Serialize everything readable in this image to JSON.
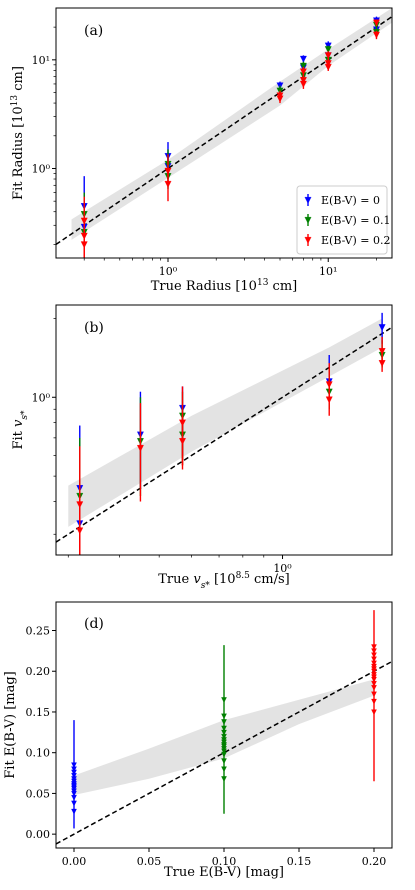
{
  "figure": {
    "background": "#ffffff"
  },
  "colors": {
    "E(B-V) = 0": "#0000ff",
    "E(B-V) = 0.1": "#008000",
    "E(B-V) = 0.2": "#ff0000",
    "identity_line": "#000000",
    "band": "#d9d9d9"
  },
  "chart_data": [
    {
      "panel": "(a)",
      "type": "scatter",
      "xscale": "log",
      "yscale": "log",
      "xlabel": "True Radius [10¹³ cm]",
      "ylabel": "Fit Radius [10¹³ cm]",
      "xlim": [
        0.2,
        25
      ],
      "ylim": [
        0.15,
        30
      ],
      "xticks": [
        {
          "value": 1,
          "label": "10⁰"
        },
        {
          "value": 10,
          "label": "10¹"
        }
      ],
      "yticks": [
        {
          "value": 1,
          "label": "10⁰"
        },
        {
          "value": 10,
          "label": "10¹"
        }
      ],
      "legend": {
        "position": "bottom-right",
        "entries": [
          "E(B-V) = 0",
          "E(B-V) = 0.1",
          "E(B-V) = 0.2"
        ]
      },
      "identity_line": true,
      "band": [
        {
          "x": 0.25,
          "low": 0.22,
          "high": 0.34
        },
        {
          "x": 1,
          "low": 0.82,
          "high": 1.2
        },
        {
          "x": 5,
          "low": 3.8,
          "high": 6.3
        },
        {
          "x": 10,
          "low": 8.8,
          "high": 12.5
        },
        {
          "x": 25,
          "low": 22,
          "high": 30
        }
      ],
      "series": [
        {
          "name": "E(B-V) = 0",
          "points": [
            {
              "x": 0.3,
              "y": 0.45,
              "lo": 0.3,
              "hi": 0.85
            },
            {
              "x": 0.3,
              "y": 0.29,
              "lo": 0.2,
              "hi": 0.45
            },
            {
              "x": 1,
              "y": 1.3,
              "lo": 0.9,
              "hi": 1.75
            },
            {
              "x": 1,
              "y": 1.05,
              "lo": 0.8,
              "hi": 1.4
            },
            {
              "x": 5,
              "y": 5.8,
              "lo": 4.9,
              "hi": 6.3
            },
            {
              "x": 7,
              "y": 10.2,
              "lo": 9.2,
              "hi": 11.0
            },
            {
              "x": 7,
              "y": 8.5,
              "lo": 7.8,
              "hi": 9.3
            },
            {
              "x": 10,
              "y": 13.5,
              "lo": 12.5,
              "hi": 14.8
            },
            {
              "x": 10,
              "y": 11.0,
              "lo": 10.0,
              "hi": 12.0
            },
            {
              "x": 20,
              "y": 23,
              "lo": 21,
              "hi": 25
            },
            {
              "x": 20,
              "y": 19,
              "lo": 17.5,
              "hi": 20.5
            }
          ]
        },
        {
          "name": "E(B-V) = 0.1",
          "points": [
            {
              "x": 0.3,
              "y": 0.38,
              "lo": 0.25,
              "hi": 0.6
            },
            {
              "x": 0.3,
              "y": 0.26,
              "lo": 0.18,
              "hi": 0.36
            },
            {
              "x": 1,
              "y": 1.1,
              "lo": 0.8,
              "hi": 1.5
            },
            {
              "x": 1,
              "y": 0.85,
              "lo": 0.65,
              "hi": 1.1
            },
            {
              "x": 5,
              "y": 5.2,
              "lo": 4.7,
              "hi": 5.8
            },
            {
              "x": 7,
              "y": 8.8,
              "lo": 8.0,
              "hi": 9.6
            },
            {
              "x": 7,
              "y": 7.2,
              "lo": 6.5,
              "hi": 8.0
            },
            {
              "x": 10,
              "y": 12.5,
              "lo": 11.5,
              "hi": 13.5
            },
            {
              "x": 10,
              "y": 10.0,
              "lo": 9.2,
              "hi": 11.0
            },
            {
              "x": 20,
              "y": 21,
              "lo": 19.5,
              "hi": 22.5
            },
            {
              "x": 20,
              "y": 18,
              "lo": 16.5,
              "hi": 19.5
            }
          ]
        },
        {
          "name": "E(B-V) = 0.2",
          "points": [
            {
              "x": 0.3,
              "y": 0.33,
              "lo": 0.22,
              "hi": 0.55
            },
            {
              "x": 0.3,
              "y": 0.24,
              "lo": 0.15,
              "hi": 0.35
            },
            {
              "x": 0.3,
              "y": 0.2,
              "lo": 0.15,
              "hi": 0.28
            },
            {
              "x": 1,
              "y": 0.95,
              "lo": 0.7,
              "hi": 1.35
            },
            {
              "x": 1,
              "y": 0.72,
              "lo": 0.5,
              "hi": 0.95
            },
            {
              "x": 5,
              "y": 4.7,
              "lo": 4.2,
              "hi": 5.2
            },
            {
              "x": 5,
              "y": 4.4,
              "lo": 4.0,
              "hi": 4.9
            },
            {
              "x": 7,
              "y": 7.8,
              "lo": 7.0,
              "hi": 8.6
            },
            {
              "x": 7,
              "y": 6.5,
              "lo": 5.8,
              "hi": 7.2
            },
            {
              "x": 7,
              "y": 6.0,
              "lo": 5.4,
              "hi": 6.7
            },
            {
              "x": 10,
              "y": 11.0,
              "lo": 10.0,
              "hi": 12.0
            },
            {
              "x": 10,
              "y": 9.3,
              "lo": 8.5,
              "hi": 10.2
            },
            {
              "x": 10,
              "y": 8.6,
              "lo": 7.9,
              "hi": 9.4
            },
            {
              "x": 20,
              "y": 22,
              "lo": 20.5,
              "hi": 23.5
            },
            {
              "x": 20,
              "y": 17,
              "lo": 15.5,
              "hi": 18.5
            }
          ]
        }
      ]
    },
    {
      "panel": "(b)",
      "type": "scatter",
      "xscale": "log",
      "yscale": "log",
      "xlabel": "True v_s* [10^8.5 cm/s]",
      "ylabel": "Fit v_s*",
      "xlim": [
        0.28,
        1.85
      ],
      "ylim": [
        0.25,
        2.25
      ],
      "xticks": [
        {
          "value": 1,
          "label": "10⁰"
        }
      ],
      "yticks": [
        {
          "value": 1,
          "label": "10⁰"
        }
      ],
      "identity_line": true,
      "band": [
        {
          "x": 0.3,
          "low": 0.32,
          "high": 0.46
        },
        {
          "x": 0.6,
          "low": 0.62,
          "high": 0.85
        },
        {
          "x": 1.3,
          "low": 1.2,
          "high": 1.55
        },
        {
          "x": 1.75,
          "low": 1.55,
          "high": 2.0
        }
      ],
      "series": [
        {
          "name": "E(B-V) = 0",
          "points": [
            {
              "x": 0.32,
              "y": 0.45,
              "lo": 0.3,
              "hi": 0.78
            },
            {
              "x": 0.32,
              "y": 0.33,
              "lo": 0.26,
              "hi": 0.45
            },
            {
              "x": 0.45,
              "y": 0.72,
              "lo": 0.45,
              "hi": 1.05
            },
            {
              "x": 0.57,
              "y": 0.91,
              "lo": 0.6,
              "hi": 1.1
            },
            {
              "x": 1.3,
              "y": 1.15,
              "lo": 1.0,
              "hi": 1.45
            },
            {
              "x": 1.75,
              "y": 1.85,
              "lo": 1.6,
              "hi": 2.1
            }
          ]
        },
        {
          "name": "E(B-V) = 0.1",
          "points": [
            {
              "x": 0.32,
              "y": 0.42,
              "lo": 0.28,
              "hi": 0.7
            },
            {
              "x": 0.45,
              "y": 0.68,
              "lo": 0.42,
              "hi": 1.0
            },
            {
              "x": 0.57,
              "y": 0.85,
              "lo": 0.55,
              "hi": 1.05
            },
            {
              "x": 0.57,
              "y": 0.72,
              "lo": 0.58,
              "hi": 0.9
            },
            {
              "x": 1.3,
              "y": 1.05,
              "lo": 0.9,
              "hi": 1.3
            },
            {
              "x": 1.75,
              "y": 1.45,
              "lo": 1.3,
              "hi": 1.65
            }
          ]
        },
        {
          "name": "E(B-V) = 0.2",
          "points": [
            {
              "x": 0.32,
              "y": 0.39,
              "lo": 0.25,
              "hi": 0.65
            },
            {
              "x": 0.32,
              "y": 0.31,
              "lo": 0.25,
              "hi": 0.42
            },
            {
              "x": 0.45,
              "y": 0.64,
              "lo": 0.4,
              "hi": 0.95
            },
            {
              "x": 0.57,
              "y": 0.8,
              "lo": 0.53,
              "hi": 1.1
            },
            {
              "x": 0.57,
              "y": 0.68,
              "lo": 0.55,
              "hi": 0.85
            },
            {
              "x": 1.3,
              "y": 1.12,
              "lo": 0.95,
              "hi": 1.35
            },
            {
              "x": 1.3,
              "y": 0.98,
              "lo": 0.85,
              "hi": 1.15
            },
            {
              "x": 1.75,
              "y": 1.5,
              "lo": 1.35,
              "hi": 1.7
            },
            {
              "x": 1.75,
              "y": 1.35,
              "lo": 1.25,
              "hi": 1.5
            }
          ]
        }
      ]
    },
    {
      "panel": "(d)",
      "type": "scatter",
      "xscale": "linear",
      "yscale": "linear",
      "xlabel": "True E(B-V) [mag]",
      "ylabel": "Fit E(B-V) [mag]",
      "xlim": [
        -0.012,
        0.212
      ],
      "ylim": [
        -0.017,
        0.285
      ],
      "xticks": [
        {
          "value": 0.0,
          "label": "0.00"
        },
        {
          "value": 0.05,
          "label": "0.05"
        },
        {
          "value": 0.1,
          "label": "0.10"
        },
        {
          "value": 0.15,
          "label": "0.15"
        },
        {
          "value": 0.2,
          "label": "0.20"
        }
      ],
      "yticks": [
        {
          "value": 0.0,
          "label": "0.00"
        },
        {
          "value": 0.05,
          "label": "0.05"
        },
        {
          "value": 0.1,
          "label": "0.10"
        },
        {
          "value": 0.15,
          "label": "0.15"
        },
        {
          "value": 0.2,
          "label": "0.20"
        },
        {
          "value": 0.25,
          "label": "0.25"
        }
      ],
      "identity_line": true,
      "band": [
        {
          "x": 0.0,
          "low": 0.048,
          "high": 0.072
        },
        {
          "x": 0.05,
          "low": 0.068,
          "high": 0.105
        },
        {
          "x": 0.1,
          "low": 0.093,
          "high": 0.14
        },
        {
          "x": 0.15,
          "low": 0.135,
          "high": 0.165
        },
        {
          "x": 0.2,
          "low": 0.17,
          "high": 0.19
        }
      ],
      "series": [
        {
          "name": "E(B-V) = 0",
          "x": 0.0,
          "errbar": [
            0.007,
            0.14
          ],
          "points": [
            0.028,
            0.038,
            0.045,
            0.05,
            0.053,
            0.056,
            0.058,
            0.06,
            0.062,
            0.065,
            0.068,
            0.072,
            0.076,
            0.08,
            0.085
          ]
        },
        {
          "name": "E(B-V) = 0.1",
          "x": 0.1,
          "errbar": [
            0.025,
            0.232
          ],
          "points": [
            0.068,
            0.08,
            0.09,
            0.098,
            0.102,
            0.105,
            0.108,
            0.11,
            0.113,
            0.116,
            0.12,
            0.125,
            0.13,
            0.138,
            0.145,
            0.165
          ]
        },
        {
          "name": "E(B-V) = 0.2",
          "x": 0.2,
          "errbar": [
            0.065,
            0.275
          ],
          "points": [
            0.15,
            0.163,
            0.172,
            0.18,
            0.185,
            0.19,
            0.193,
            0.196,
            0.2,
            0.203,
            0.206,
            0.21,
            0.215,
            0.22,
            0.225,
            0.23
          ]
        }
      ]
    }
  ]
}
